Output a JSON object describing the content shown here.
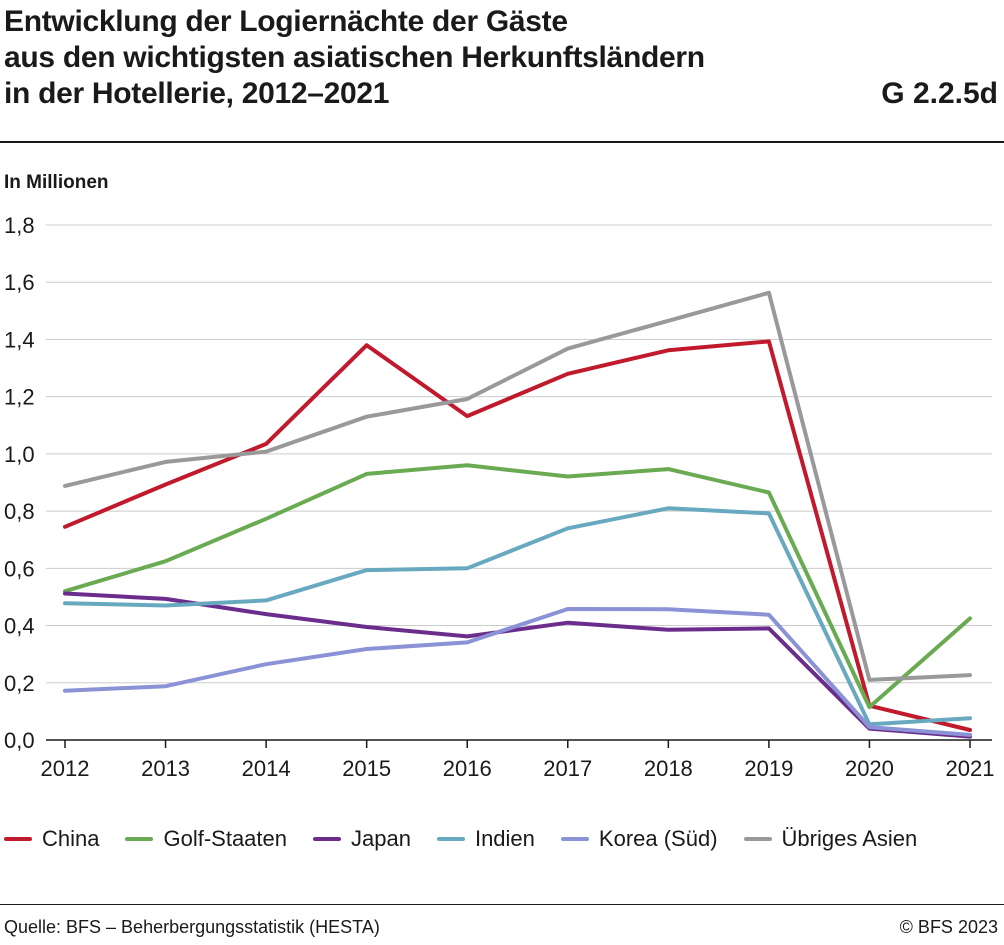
{
  "title_lines": [
    "Entwicklung der Logiernächte der Gäste",
    "aus den wichtigsten asiatischen Herkunftsländern",
    "in der Hotellerie, 2012–2021"
  ],
  "figure_code": "G 2.2.5d",
  "unit_label": "In Millionen",
  "source": "Quelle: BFS – Beherbergungsstatistik (HESTA)",
  "copyright": "© BFS 2023",
  "chart_data": {
    "type": "line",
    "x": [
      "2012",
      "2013",
      "2014",
      "2015",
      "2016",
      "2017",
      "2018",
      "2019",
      "2020",
      "2021"
    ],
    "ylim": [
      0,
      1.8
    ],
    "yticks": [
      "0,0",
      "0,2",
      "0,4",
      "0,6",
      "0,8",
      "1,0",
      "1,2",
      "1,4",
      "1,6",
      "1,8"
    ],
    "grid": true,
    "legend_position": "bottom",
    "series": [
      {
        "name": "China",
        "color": "#c01a2c",
        "values": [
          0.745,
          0.893,
          1.035,
          1.38,
          1.132,
          1.28,
          1.362,
          1.393,
          0.12,
          0.035
        ]
      },
      {
        "name": "Golf-Staaten",
        "color": "#6aaa52",
        "values": [
          0.52,
          0.625,
          0.773,
          0.93,
          0.96,
          0.921,
          0.947,
          0.865,
          0.115,
          0.425
        ]
      },
      {
        "name": "Japan",
        "color": "#6b2d8c",
        "values": [
          0.512,
          0.493,
          0.44,
          0.395,
          0.362,
          0.41,
          0.385,
          0.39,
          0.04,
          0.012
        ]
      },
      {
        "name": "Indien",
        "color": "#68a9c0",
        "values": [
          0.478,
          0.47,
          0.488,
          0.594,
          0.6,
          0.74,
          0.81,
          0.792,
          0.055,
          0.076
        ]
      },
      {
        "name": "Korea (Süd)",
        "color": "#8b92d6",
        "values": [
          0.172,
          0.188,
          0.265,
          0.318,
          0.341,
          0.458,
          0.457,
          0.438,
          0.045,
          0.018
        ]
      },
      {
        "name": "Übriges Asien",
        "color": "#999999",
        "values": [
          0.888,
          0.972,
          1.008,
          1.13,
          1.192,
          1.368,
          1.465,
          1.563,
          0.21,
          0.227
        ]
      }
    ]
  }
}
